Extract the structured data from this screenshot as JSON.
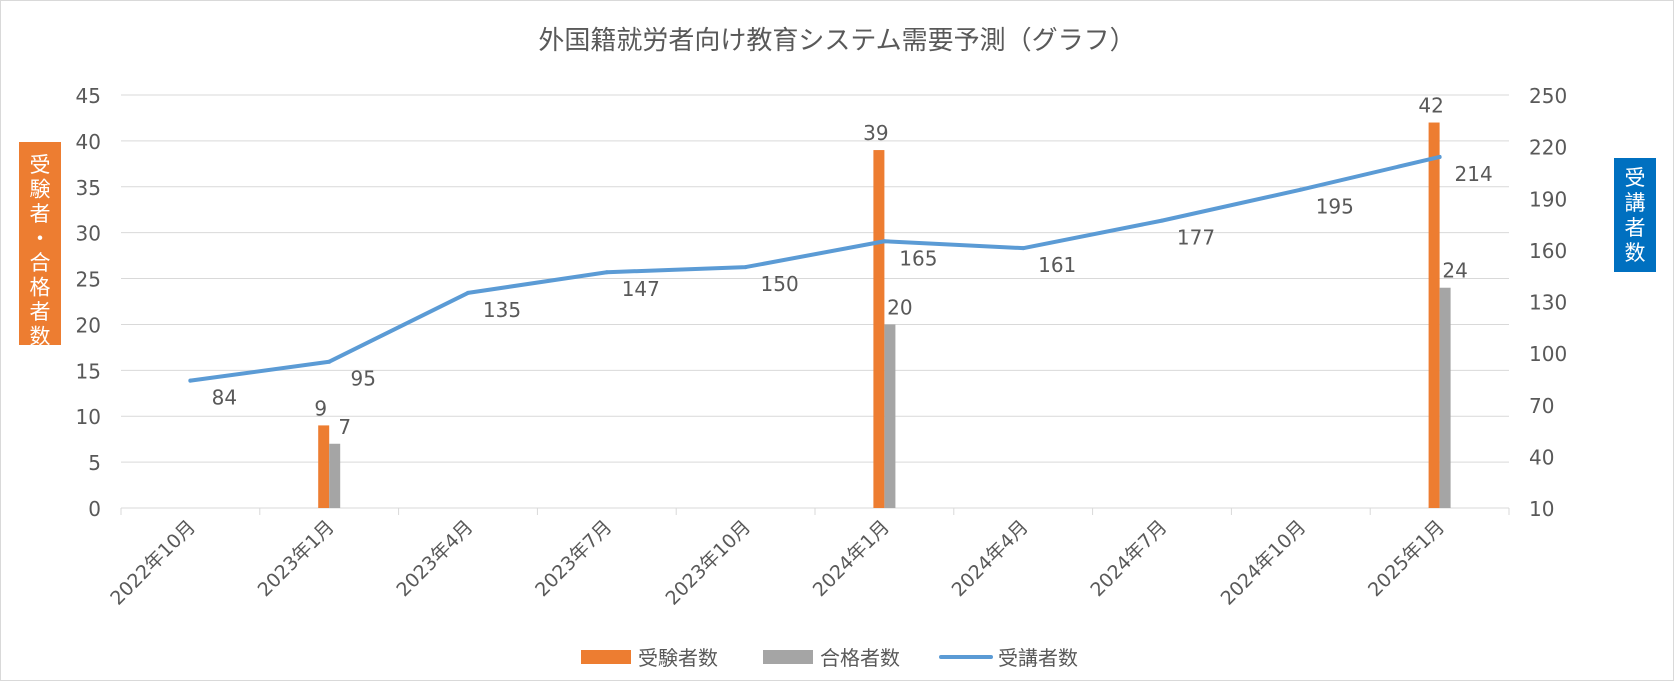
{
  "chart_data": {
    "type": "bar",
    "title": "外国籍就労者向け教育システム需要予測（グラフ）",
    "categories": [
      "2022年10月",
      "2023年1月",
      "2023年4月",
      "2023年7月",
      "2023年10月",
      "2024年1月",
      "2024年4月",
      "2024年7月",
      "2024年10月",
      "2025年1月"
    ],
    "y_left": {
      "label": "受験者・合格者数",
      "range": [
        0,
        45
      ],
      "ticks": [
        0,
        5,
        10,
        15,
        20,
        25,
        30,
        35,
        40,
        45
      ]
    },
    "y_right": {
      "label": "受講者数",
      "range": [
        10,
        250
      ],
      "ticks": [
        10,
        40,
        70,
        100,
        130,
        160,
        190,
        220,
        250
      ]
    },
    "series": [
      {
        "name": "受験者数",
        "type": "bar",
        "axis": "left",
        "color": "#ED7D31",
        "values": [
          null,
          9,
          null,
          null,
          null,
          39,
          null,
          null,
          null,
          42
        ]
      },
      {
        "name": "合格者数",
        "type": "bar",
        "axis": "left",
        "color": "#A5A5A5",
        "values": [
          null,
          7,
          null,
          null,
          null,
          20,
          null,
          null,
          null,
          24
        ]
      },
      {
        "name": "受講者数",
        "type": "line",
        "axis": "right",
        "color": "#5B9BD5",
        "values": [
          84,
          95,
          135,
          147,
          150,
          165,
          161,
          177,
          195,
          214
        ]
      }
    ],
    "grid": true,
    "legend_position": "bottom"
  },
  "colors": {
    "left_axis_badge": "#ED7D31",
    "right_axis_badge": "#0070C0",
    "gridline": "#d9d9d9",
    "text": "#595959"
  }
}
